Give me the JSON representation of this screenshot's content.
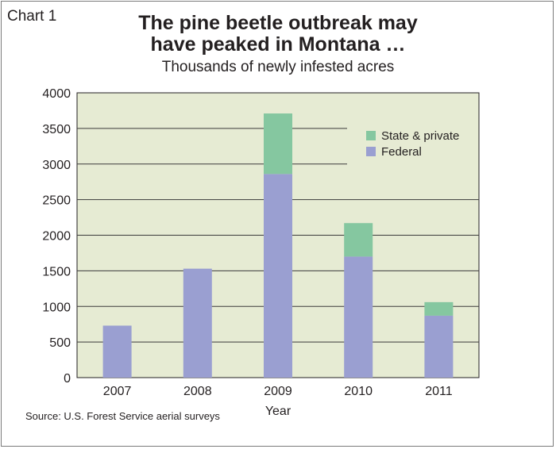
{
  "chart_label": "Chart 1",
  "source": "Source: U.S. Forest Service aerial surveys",
  "chart_data": {
    "type": "bar",
    "stacked": true,
    "title_line1": "The pine beetle outbreak may",
    "title_line2": "have peaked in Montana …",
    "subtitle": "Thousands of newly infested acres",
    "xlabel": "Year",
    "ylabel": "",
    "categories": [
      "2007",
      "2008",
      "2009",
      "2010",
      "2011"
    ],
    "ylim": [
      0,
      4000
    ],
    "yticks": [
      0,
      500,
      1000,
      1500,
      2000,
      2500,
      3000,
      3500,
      4000
    ],
    "grid": true,
    "legend_position": "top-right",
    "series": [
      {
        "name": "Federal",
        "color": "#9a9fd1",
        "values": [
          730,
          1530,
          2860,
          1700,
          870
        ]
      },
      {
        "name": "State & private",
        "color": "#85c7a0",
        "values": [
          0,
          0,
          850,
          470,
          190
        ]
      }
    ],
    "legend_order": [
      "State & private",
      "Federal"
    ],
    "plot_background": "#e6ebd3",
    "grid_color": "#3a3a3a"
  }
}
